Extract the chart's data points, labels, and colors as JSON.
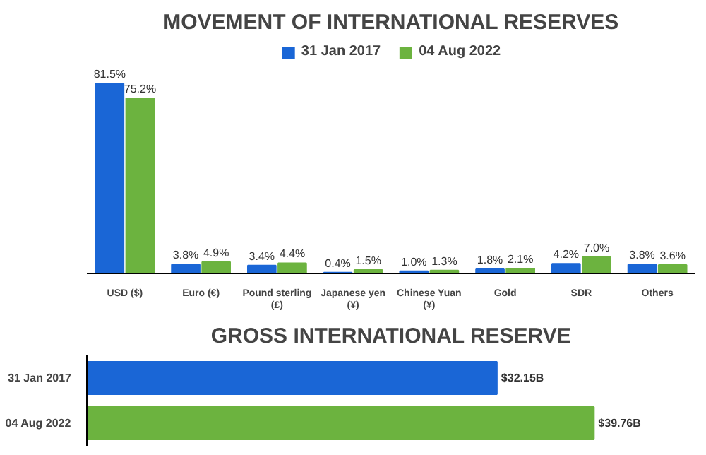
{
  "chart_data": [
    {
      "type": "bar",
      "title": "MOVEMENT OF INTERNATIONAL RESERVES",
      "categories": [
        "USD ($)",
        "Euro (€)",
        "Pound sterling\n(£)",
        "Japanese yen\n(¥)",
        "Chinese Yuan\n(¥)",
        "Gold",
        "SDR",
        "Others"
      ],
      "series": [
        {
          "name": "31 Jan 2017",
          "color": "#1a66d6",
          "values": [
            81.5,
            3.8,
            3.4,
            0.4,
            1.0,
            1.8,
            4.2,
            3.8
          ],
          "value_labels": [
            "81.5%",
            "3.8%",
            "3.4%",
            "0.4%",
            "1.0%",
            "1.8%",
            "4.2%",
            "3.8%"
          ]
        },
        {
          "name": "04 Aug 2022",
          "color": "#6cb33f",
          "values": [
            75.2,
            4.9,
            4.4,
            1.5,
            1.3,
            2.1,
            7.0,
            3.6
          ],
          "value_labels": [
            "75.2%",
            "4.9%",
            "4.4%",
            "1.5%",
            "1.3%",
            "2.1%",
            "7.0%",
            "3.6%"
          ]
        }
      ],
      "legend": "top",
      "tick_labels": "x"
    },
    {
      "type": "bar",
      "orientation": "horizontal",
      "title": "GROSS INTERNATIONAL RESERVE",
      "categories": [
        "31 Jan 2017",
        "04 Aug 2022"
      ],
      "values": [
        32.15,
        39.76
      ],
      "colors": [
        "#1a66d6",
        "#6cb33f"
      ],
      "value_labels": [
        "$32.15B",
        "$39.76B"
      ],
      "tick_labels": "y"
    }
  ]
}
